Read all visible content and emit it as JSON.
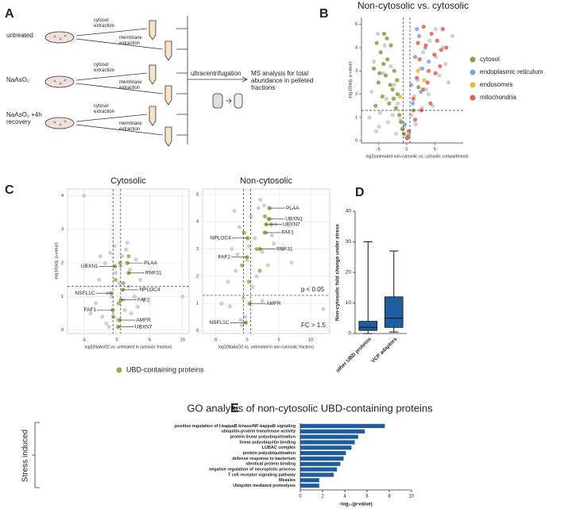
{
  "panel_labels": [
    "A",
    "B",
    "C",
    "D",
    "E"
  ],
  "diagram": {
    "conditions": [
      "untreated",
      "NaAsO₂",
      "NaAsO₂ +4h recovery"
    ],
    "steps": [
      "cytosol extraction",
      "membrane extraction"
    ],
    "center_step": "ultracentrifugation",
    "result": "MS analysis for total abundance in pelleted fractions"
  },
  "chart_data": [
    {
      "type": "scatter",
      "title": "Non-cytosolic vs. cytosolic",
      "xlabel": "log2(untreated non-cytosolic vs. cytosolic compartments",
      "ylabel": "-log10(adj. p-value)",
      "xlim": [
        -8,
        10
      ],
      "ylim": [
        -0.1,
        5.3
      ],
      "xticks": [
        -5,
        0,
        5
      ],
      "yticks": [
        0,
        1,
        2,
        3,
        4,
        5
      ],
      "grid": false,
      "legend": "right",
      "hlines": [
        1.3
      ],
      "vlines": [
        -0.585,
        0.585
      ],
      "series": [
        {
          "color": "#c8c8c8",
          "x": [
            -6.2,
            -5.8,
            -5.1,
            -4.7,
            -4.2,
            -3.9,
            -3.3,
            -2.8,
            -2.2,
            -1.6,
            -1.1,
            -0.6,
            -0.2,
            0.3,
            0.8,
            1.3,
            1.9,
            2.4,
            2.9,
            3.5,
            4.1,
            4.6,
            5.2,
            5.8,
            6.4,
            -4.9,
            -3.6,
            -2.5,
            1.6,
            2.7,
            3.9,
            5.1,
            6.9,
            -6.6,
            -5.4,
            -1.9,
            7.4,
            8.1,
            0.1,
            -0.4
          ],
          "y": [
            2.1,
            3.4,
            4.6,
            1.2,
            2.9,
            4.1,
            0.8,
            3.2,
            2.4,
            1.6,
            0.9,
            0.5,
            0.2,
            0.4,
            1.1,
            1.9,
            2.6,
            3.1,
            3.8,
            2.2,
            4.3,
            1.5,
            3.6,
            2.8,
            4.0,
            0.6,
            1.8,
            1.1,
            0.7,
            1.4,
            2.0,
            4.8,
            3.3,
            1.0,
            0.4,
            0.3,
            2.5,
            4.5,
            0.1,
            0.6
          ]
        },
        {
          "name": "cytosol",
          "color": "#8a9a45",
          "x": [
            -5.8,
            -5.3,
            -5.0,
            -4.6,
            -4.3,
            -4.0,
            -3.7,
            -3.4,
            -3.1,
            -2.8,
            -2.5,
            -2.2,
            -1.9,
            -1.6,
            -1.3,
            -1.0,
            -5.5,
            -4.8,
            -4.1,
            -3.5,
            -2.9,
            -2.3,
            -1.7,
            -0.8,
            -0.5,
            0.3,
            1.2,
            2.1
          ],
          "y": [
            3.1,
            4.2,
            2.5,
            3.8,
            1.9,
            4.6,
            2.8,
            3.5,
            1.6,
            4.1,
            2.2,
            3.0,
            1.4,
            2.0,
            1.1,
            0.8,
            1.5,
            2.9,
            3.3,
            4.4,
            2.4,
            1.8,
            2.6,
            0.5,
            0.3,
            0.2,
            1.3,
            2.3
          ]
        },
        {
          "name": "endoplasmic reticulum",
          "color": "#7aa6d6",
          "x": [
            0.8,
            1.5,
            2.2,
            2.8,
            3.3,
            1.1,
            2.5,
            3.9,
            -0.3,
            1.8
          ],
          "y": [
            2.4,
            3.6,
            4.5,
            3.1,
            4.0,
            1.6,
            2.1,
            3.4,
            0.7,
            4.8
          ]
        },
        {
          "name": "endosomes",
          "color": "#f2b431",
          "x": [
            2.0,
            -1.2,
            3.1
          ],
          "y": [
            3.0,
            1.9,
            2.6
          ]
        },
        {
          "name": "mitochondria",
          "color": "#e0604f",
          "x": [
            1.2,
            1.8,
            2.3,
            2.9,
            3.4,
            3.9,
            4.4,
            4.9,
            5.4,
            5.9,
            6.4,
            7.0,
            2.6,
            3.7,
            4.2,
            5.1,
            6.1,
            1.5,
            2.0,
            3.0,
            0.4,
            0.1
          ],
          "y": [
            1.8,
            2.7,
            3.5,
            2.2,
            4.1,
            3.0,
            4.6,
            3.7,
            4.3,
            3.2,
            4.8,
            4.0,
            1.3,
            2.5,
            1.6,
            2.9,
            3.9,
            0.9,
            4.2,
            4.9,
            0.4,
            0.1
          ]
        }
      ]
    },
    {
      "type": "scatter",
      "title": "Cytosolic",
      "xlabel": "log2(NaAsO2 vs. untreated in cytosolic fraction)",
      "ylabel": "-log10(adj. p-value)",
      "xlim": [
        -7.5,
        11
      ],
      "ylim": [
        -0.1,
        4.2
      ],
      "xticks": [
        -5,
        0,
        5,
        10
      ],
      "yticks": [
        0,
        1,
        2,
        3,
        4
      ],
      "grid": true,
      "legend": "bottom",
      "hlines": [
        1.3
      ],
      "vlines": [
        -0.585,
        0.585
      ],
      "series": [
        {
          "color": "#c8c8c8",
          "x": [
            -3.2,
            -2.7,
            -2.2,
            -1.8,
            -1.4,
            -1.0,
            -0.6,
            -0.2,
            0.2,
            0.6,
            1.0,
            1.4,
            1.8,
            2.2,
            2.7,
            3.2,
            -2.5,
            -1.6,
            -0.8,
            0.4,
            1.2,
            2.0,
            2.9,
            -4.0,
            4.1,
            -1.2,
            1.6,
            -0.4,
            0.8,
            10.0,
            -5.0,
            3.6
          ],
          "y": [
            0.8,
            1.5,
            0.4,
            2.0,
            1.1,
            2.3,
            0.6,
            1.7,
            0.3,
            1.9,
            0.9,
            2.4,
            1.3,
            0.5,
            1.0,
            0.7,
            2.2,
            0.2,
            1.0,
            1.4,
            0.6,
            1.8,
            2.1,
            0.5,
            0.9,
            0.1,
            2.6,
            2.5,
            2.2,
            1.0,
            4.0,
            1.5
          ]
        },
        {
          "name": "UBD-containing proteins",
          "color": "#9aab52",
          "x": [
            1.0,
            0.5,
            -0.5,
            1.8,
            -0.2,
            0.3
          ],
          "y": [
            1.4,
            2.0,
            0.4,
            2.2,
            1.5,
            0.8
          ]
        }
      ],
      "annotations": [
        {
          "text": "PLAA",
          "x": 1.6,
          "y": 2.0
        },
        {
          "text": "UBXN1",
          "x": -0.3,
          "y": 1.9
        },
        {
          "text": "RNF31",
          "x": 1.8,
          "y": 1.7
        },
        {
          "text": "NSFL1C",
          "x": -0.8,
          "y": 1.1
        },
        {
          "text": "NPLOC4",
          "x": 0.9,
          "y": 1.2
        },
        {
          "text": "FAF2",
          "x": 0.6,
          "y": 0.9
        },
        {
          "text": "FAF1",
          "x": -0.6,
          "y": 0.6
        },
        {
          "text": "AMFR",
          "x": 0.4,
          "y": 0.3
        },
        {
          "text": "UBXN7",
          "x": 0.2,
          "y": 0.1
        }
      ]
    },
    {
      "type": "scatter",
      "title": "Non-cytosolic",
      "xlabel": "log2(NaAsO2 vs. untreated in non-cytosolic fraction)",
      "xlim": [
        -7,
        13
      ],
      "ylim": [
        -0.1,
        5.2
      ],
      "xticks": [
        -5,
        0,
        5,
        10
      ],
      "yticks": [
        0,
        1,
        2,
        3,
        4,
        5
      ],
      "grid": true,
      "hlines": [
        1.3
      ],
      "vlines": [
        -0.585,
        0.585
      ],
      "notes": [
        "p < 0.05",
        "FC > 1.5"
      ],
      "series": [
        {
          "color": "#c8c8c8",
          "x": [
            -3,
            -2.4,
            -1.8,
            -1.2,
            -0.6,
            0,
            0.6,
            1.2,
            1.8,
            2.4,
            3,
            3.6,
            4.2,
            -2.7,
            -1.5,
            -0.3,
            0.9,
            2.1,
            3.3,
            4.5,
            -2,
            -1,
            0.3,
            1.5,
            2.7,
            3.9,
            5.5,
            7,
            -4,
            12,
            -0.8,
            2.4
          ],
          "y": [
            1.8,
            3.0,
            2.2,
            3.8,
            1.2,
            2.6,
            4.2,
            3.4,
            4.5,
            2.9,
            3.6,
            4.1,
            3.2,
            0.9,
            2.8,
            0.5,
            1.6,
            4.8,
            2.4,
            3.9,
            4.4,
            0.4,
            3.1,
            2.0,
            4.6,
            3.5,
            3.0,
            2.5,
            1.0,
            0.8,
            0.2,
            1.1
          ]
        },
        {
          "color": "#9aab52",
          "x": [
            -0.8,
            1.5,
            2.8,
            0.3,
            -0.5,
            2.0,
            3.8
          ],
          "y": [
            2.4,
            3.0,
            4.2,
            1.8,
            3.6,
            2.2,
            3.9
          ]
        }
      ],
      "annotations": [
        {
          "text": "PLAA",
          "x": 3.5,
          "y": 4.5
        },
        {
          "text": "UBXN1",
          "x": 3.4,
          "y": 4.1
        },
        {
          "text": "UBXN7",
          "x": 3.0,
          "y": 3.9
        },
        {
          "text": "FAF1",
          "x": 2.8,
          "y": 3.6
        },
        {
          "text": "NPLOC4",
          "x": 0.1,
          "y": 3.4
        },
        {
          "text": "FAF2",
          "x": 0.0,
          "y": 2.7
        },
        {
          "text": "RNF31",
          "x": 2.0,
          "y": 3.0
        },
        {
          "text": "AMFR",
          "x": 0.4,
          "y": 1.0
        },
        {
          "text": "NSFL1C",
          "x": -0.2,
          "y": 0.3
        }
      ]
    },
    {
      "type": "box",
      "ylabel": "Non-cytosolic fold change under stress",
      "categories": [
        "other UBD proteins",
        "VCP adaptors"
      ],
      "color": "#1f5e9e",
      "ylim": [
        0,
        40
      ],
      "yticks": [
        0,
        10,
        20,
        30,
        40
      ],
      "boxes": [
        {
          "min": 0,
          "q1": 1,
          "median": 2,
          "q3": 4,
          "max": 30
        },
        {
          "min": 0.5,
          "q1": 2,
          "median": 5,
          "q3": 12,
          "max": 27
        }
      ]
    },
    {
      "type": "barh",
      "title": "GO analysis of non-cytosolic UBD-containing proteins",
      "group_label": "Stress induced",
      "xlabel": "-log₁₀(p-value)",
      "color": "#1f5e9e",
      "xlim": [
        0,
        10
      ],
      "xticks": [
        0,
        2,
        4,
        6,
        8,
        10
      ],
      "categories": [
        "positive regulation of I-kappaB kinase/NF-kappaB signaling",
        "ubiquitin-protein transferase activity",
        "protein linear polyubiquitination",
        "linear polyubiquitin binding",
        "LUBAC complex",
        "protein polyubiquitination",
        "defense response to bacterium",
        "identical protein binding",
        "negative regulation of necroptotic process",
        "T cell receptor signaling pathway",
        "Measles",
        "Ubiquitin mediated proteolysis"
      ],
      "values": [
        7.6,
        5.8,
        5.2,
        4.9,
        4.6,
        4.1,
        3.9,
        3.6,
        3.3,
        3.0,
        1.7,
        1.7
      ]
    }
  ]
}
